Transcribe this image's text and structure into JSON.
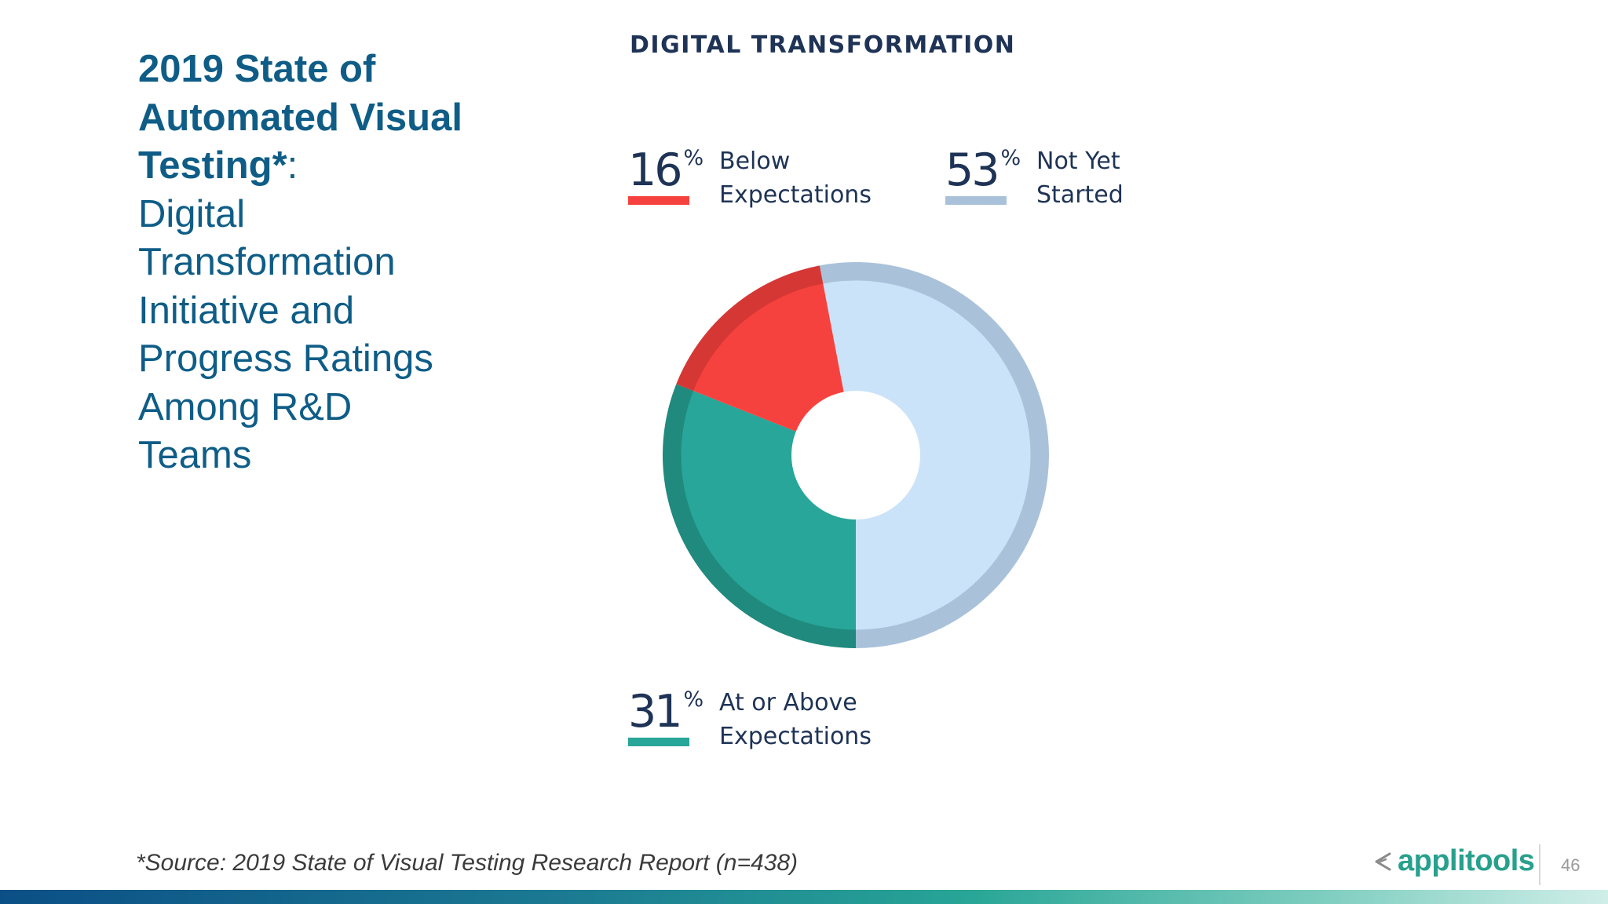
{
  "heading": {
    "bold_lines": [
      "2019 State of",
      "Automated Visual",
      "Testing*"
    ],
    "colon": ":",
    "lines": [
      "Digital",
      "Transformation",
      "Initiative and",
      "Progress Ratings",
      "Among R&D",
      "Teams"
    ]
  },
  "chart_data": {
    "type": "pie",
    "title": "DIGITAL TRANSFORMATION",
    "slices": [
      {
        "label": "Not Yet Started",
        "value": 53,
        "color": "#cbe3f8",
        "ring_color": "#a9c2da"
      },
      {
        "label": "At or Above Expectations",
        "value": 31,
        "color": "#27a699",
        "ring_color": "#1f8a7d"
      },
      {
        "label": "Below Expectations",
        "value": 16,
        "color": "#f6423e",
        "ring_color": "#d53735"
      }
    ],
    "unit": "%"
  },
  "legend": {
    "below": {
      "value": "16",
      "pct": "%",
      "line1": "Below",
      "line2": "Expectations",
      "color": "#f6423e"
    },
    "not_yet": {
      "value": "53",
      "pct": "%",
      "line1": "Not Yet",
      "line2": "Started",
      "color": "#a9c2da"
    },
    "above": {
      "value": "31",
      "pct": "%",
      "line1": "At or Above",
      "line2": "Expectations",
      "color": "#27a699"
    }
  },
  "footer": {
    "source": "*Source: 2019 State of Visual Testing Research Report (n=438)",
    "logo_text": "applitools",
    "logo_icon": "applitools-logo-icon",
    "page_number": "46"
  }
}
